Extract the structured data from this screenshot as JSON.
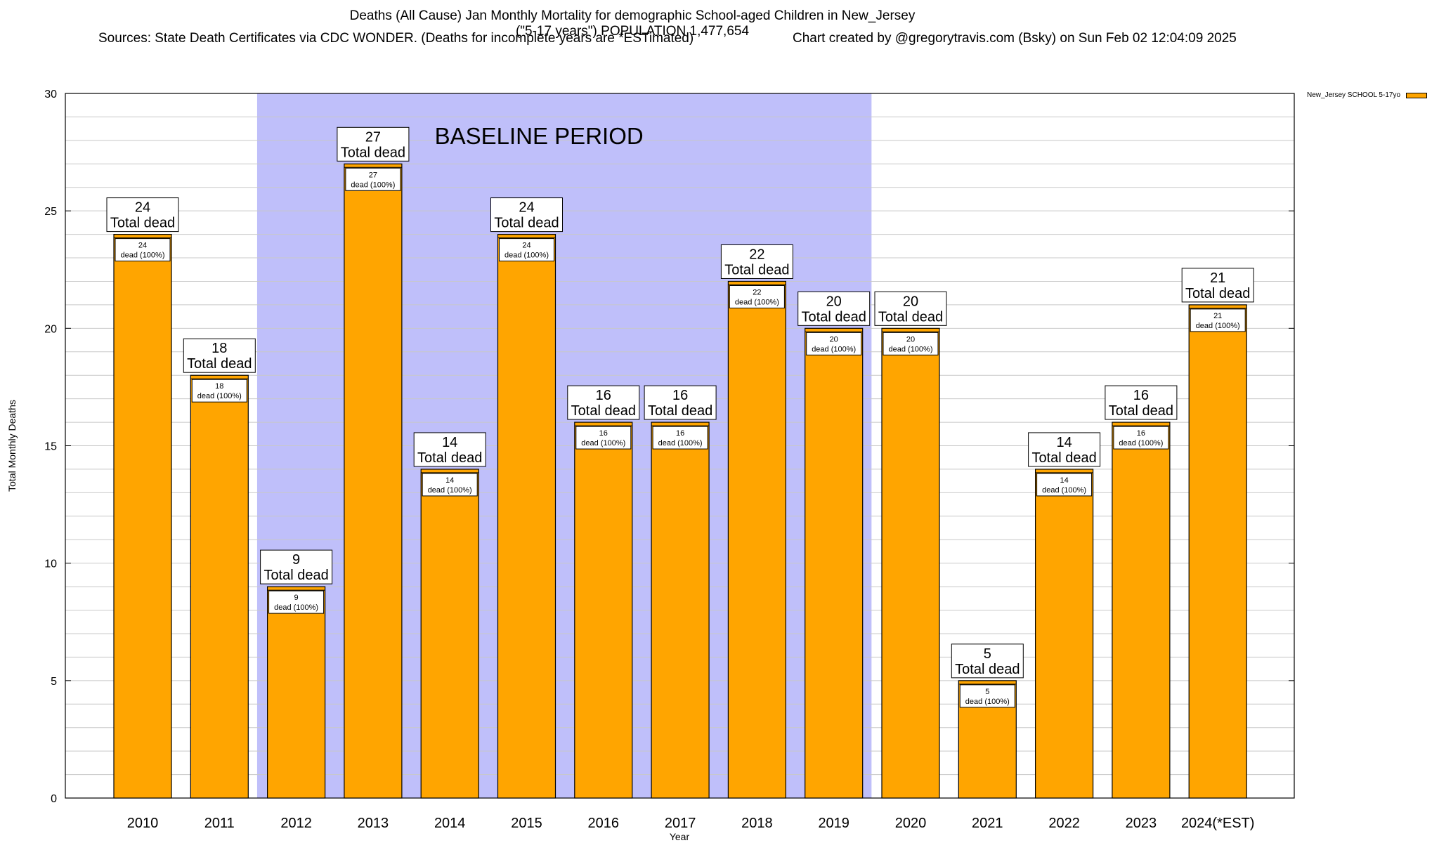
{
  "titles": {
    "line1": "Deaths (All Cause) Jan Monthly Mortality for demographic School-aged Children in New_Jersey",
    "line2": "(\"5-17 years\") POPULATION 1,477,654",
    "line3_left": "Sources: State Death Certificates via CDC WONDER. (Deaths for incomplete years are *ESTimated)",
    "line3_right": "Chart created by @gregorytravis.com (Bsky) on Sun Feb 02 12:04:09 2025"
  },
  "legend": {
    "label": "New_Jersey SCHOOL 5-17yo",
    "color": "#ffa500"
  },
  "chart_data": {
    "type": "bar",
    "categories": [
      "2010",
      "2011",
      "2012",
      "2013",
      "2014",
      "2015",
      "2016",
      "2017",
      "2018",
      "2019",
      "2020",
      "2021",
      "2022",
      "2023",
      "2024(*EST)"
    ],
    "series": [
      {
        "name": "New_Jersey SCHOOL 5-17yo",
        "values": [
          24,
          18,
          9,
          27,
          14,
          24,
          16,
          16,
          22,
          20,
          20,
          5,
          14,
          16,
          21
        ]
      }
    ],
    "xlabel": "Year",
    "ylabel": "Total Monthly Deaths",
    "ylim": [
      0,
      30
    ],
    "yticks": [
      0,
      5,
      10,
      15,
      20,
      25,
      30
    ],
    "grid": true,
    "legend_position": "top-right",
    "bar_color": "#ffa500",
    "baseline_band": {
      "label": "BASELINE PERIOD",
      "from": "2012",
      "to": "2019",
      "color": "#bfbffa"
    },
    "total_label_suffix": "Total dead",
    "inner_label_suffix": "dead (100%)"
  }
}
